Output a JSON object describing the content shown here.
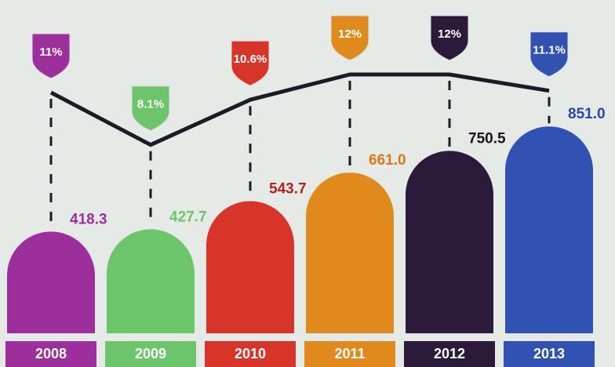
{
  "chart_data": {
    "type": "bar",
    "categories": [
      "2008",
      "2009",
      "2010",
      "2011",
      "2012",
      "2013"
    ],
    "values": [
      418.3,
      427.7,
      543.7,
      661.0,
      750.5,
      851.0
    ],
    "value_labels": [
      "418.3",
      "427.7",
      "543.7",
      "661.0",
      "750.5",
      "851.0"
    ],
    "colors": [
      "#9c2f9c",
      "#6dc56b",
      "#d7352a",
      "#e08a1e",
      "#2b1a3a",
      "#3152b3"
    ],
    "label_colors": [
      "#9c2f9c",
      "#6dc56b",
      "#b0261f",
      "#d9791a",
      "#1a1020",
      "#2a46a8"
    ],
    "line": {
      "values": [
        11,
        8.1,
        10.6,
        12,
        12,
        11.1
      ],
      "value_labels": [
        "11%",
        "8.1%",
        "10.6%",
        "12%",
        "12%",
        "11.1%"
      ],
      "color": "#1b1b26"
    }
  }
}
